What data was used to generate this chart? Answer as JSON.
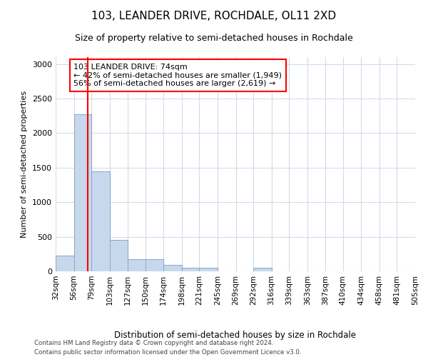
{
  "title": "103, LEANDER DRIVE, ROCHDALE, OL11 2XD",
  "subtitle": "Size of property relative to semi-detached houses in Rochdale",
  "xlabel": "Distribution of semi-detached houses by size in Rochdale",
  "ylabel": "Number of semi-detached properties",
  "footer_line1": "Contains HM Land Registry data © Crown copyright and database right 2024.",
  "footer_line2": "Contains public sector information licensed under the Open Government Licence v3.0.",
  "bar_color": "#c8d8ec",
  "bar_edge_color": "#7fa8cc",
  "grid_color": "#d0dcea",
  "annotation_text": "103 LEANDER DRIVE: 74sqm\n← 42% of semi-detached houses are smaller (1,949)\n56% of semi-detached houses are larger (2,619) →",
  "property_size": 74,
  "bins": [
    32,
    56,
    79,
    103,
    127,
    150,
    174,
    198,
    221,
    245,
    269,
    292,
    316,
    339,
    363,
    387,
    410,
    434,
    458,
    481,
    505
  ],
  "bin_labels": [
    "32sqm",
    "56sqm",
    "79sqm",
    "103sqm",
    "127sqm",
    "150sqm",
    "174sqm",
    "198sqm",
    "221sqm",
    "245sqm",
    "269sqm",
    "292sqm",
    "316sqm",
    "339sqm",
    "363sqm",
    "387sqm",
    "410sqm",
    "434sqm",
    "458sqm",
    "481sqm",
    "505sqm"
  ],
  "counts": [
    225,
    2270,
    1450,
    450,
    175,
    175,
    90,
    55,
    50,
    0,
    0,
    50,
    0,
    0,
    0,
    0,
    0,
    0,
    0,
    0
  ],
  "ylim": [
    0,
    3100
  ],
  "yticks": [
    0,
    500,
    1000,
    1500,
    2000,
    2500,
    3000
  ],
  "red_line_x": 74,
  "figsize": [
    6.0,
    5.0
  ],
  "dpi": 100,
  "background_color": "#ffffff"
}
